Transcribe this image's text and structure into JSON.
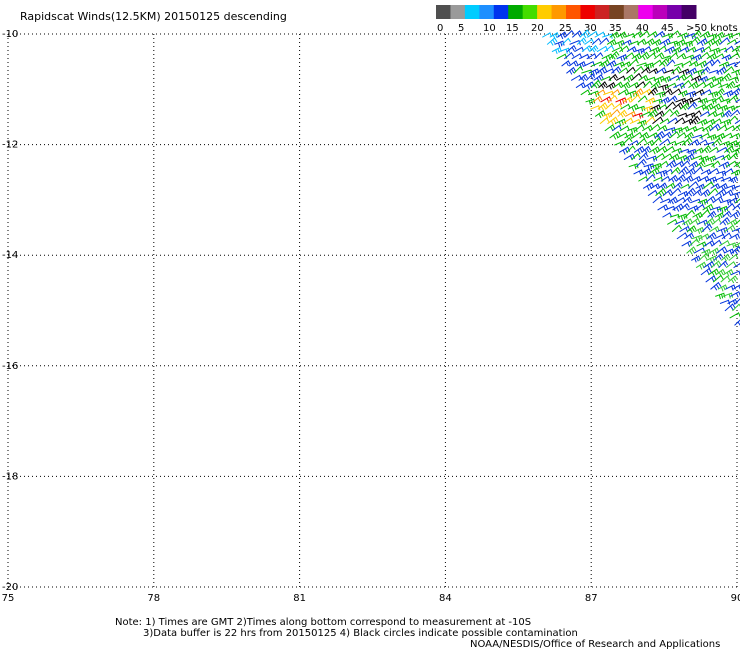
{
  "chart_data": {
    "type": "wind-barb-map",
    "title": "Rapidscat Winds(12.5KM) 20150125 descending",
    "legend": {
      "labels": [
        "0",
        "5",
        "10",
        "15",
        "20",
        "25",
        "30",
        "35",
        "40",
        "45",
        ">50 knots"
      ],
      "colors": [
        "#4f4f4f",
        "#9a9a9a",
        "#00ccff",
        "#1e8fff",
        "#0033ee",
        "#00aa00",
        "#44dd00",
        "#ffcc00",
        "#ff9900",
        "#ff5500",
        "#ee0000",
        "#cc2222",
        "#774422",
        "#aa7766",
        "#ee00ee",
        "#bb00bb",
        "#7700aa",
        "#440066"
      ]
    },
    "x_ticks": [
      "75",
      "78",
      "81",
      "84",
      "87",
      "90"
    ],
    "y_ticks": [
      "-10",
      "-12",
      "-14",
      "-16",
      "-18",
      "-20"
    ],
    "xlim": [
      75,
      90
    ],
    "ylim": [
      -20,
      -10
    ],
    "grid": true,
    "swath": {
      "description": "observed winds cover the triangular area bounded by 85.9E,-10S; 90E,-10S; 90E,-15.4S",
      "lon_top_left": 85.9,
      "lat_bottom_right": -15.4
    },
    "colors": {
      "blue": "#0033dd",
      "green": "#00bb00",
      "lightgreen": "#33cc33",
      "black": "#000000",
      "yellow": "#ffcc00",
      "orange": "#ff9900",
      "red": "#ee0000",
      "cyan": "#00bbff"
    }
  },
  "notes": {
    "line1": "Note: 1) Times are GMT 2)Times along bottom correspond to measurement at -10S",
    "line2": "3)Data buffer is 22 hrs from 20150125 4) Black circles indicate possible contamination",
    "line3": "NOAA/NESDIS/Office of Research and Applications"
  }
}
